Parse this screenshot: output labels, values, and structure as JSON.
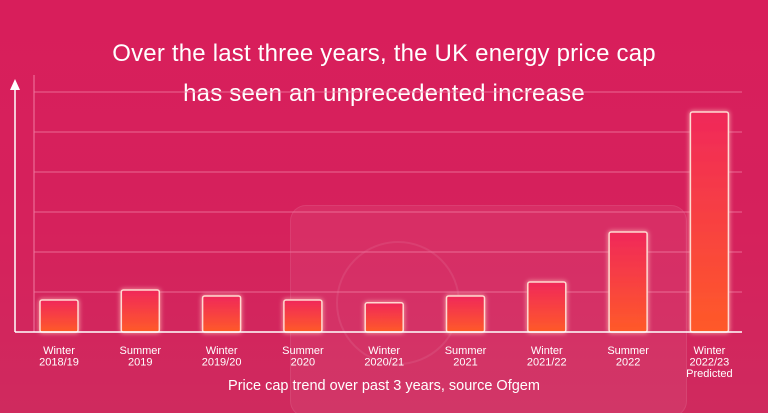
{
  "title": {
    "line1": "Over the last three years, the UK energy price cap",
    "line2": "has seen an unprecedented increase"
  },
  "caption": "Price cap trend over past 3 years, source Ofgem",
  "chart_data": {
    "type": "bar",
    "title": "Over the last three years, the UK energy price cap has seen an unprecedented increase",
    "categories": [
      [
        "Winter",
        "2018/19"
      ],
      [
        "Summer",
        "2019"
      ],
      [
        "Winter",
        "2019/20"
      ],
      [
        "Summer",
        "2020"
      ],
      [
        "Winter",
        "2020/21"
      ],
      [
        "Summer",
        "2021"
      ],
      [
        "Winter",
        "2021/22"
      ],
      [
        "Summer",
        "2022"
      ],
      [
        "Winter",
        "2022/23",
        "Predicted"
      ]
    ],
    "values": [
      0.8,
      1.05,
      0.9,
      0.8,
      0.73,
      0.9,
      1.25,
      2.5,
      5.5
    ],
    "ylim": [
      0,
      6.5
    ],
    "grid": true,
    "colors": {
      "bar_top": "#f0285a",
      "bar_bottom": "#ff5a28",
      "bar_edge": "#ffd9d0",
      "grid": "#f07aa0",
      "axis": "#ffffff"
    }
  }
}
